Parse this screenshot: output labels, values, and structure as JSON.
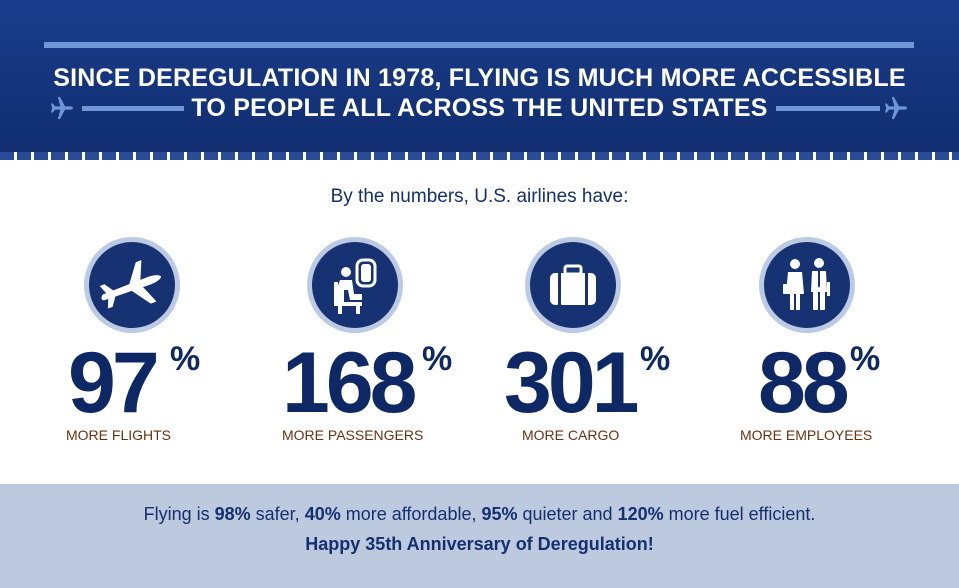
{
  "header": {
    "title_line1": "SINCE DEREGULATION IN 1978, FLYING IS MUCH MORE ACCESSIBLE",
    "title_line2": "TO PEOPLE ALL ACROSS THE UNITED STATES",
    "left_icon": "airplane-icon",
    "right_icon": "airplane-icon"
  },
  "subtitle": "By the numbers, U.S. airlines have:",
  "stats": [
    {
      "value": "97",
      "unit": "%",
      "label": "MORE FLIGHTS",
      "icon": "airplane-icon"
    },
    {
      "value": "168",
      "unit": "%",
      "label": "MORE PASSENGERS",
      "icon": "seated-passenger-icon"
    },
    {
      "value": "301",
      "unit": "%",
      "label": "MORE CARGO",
      "icon": "suitcase-icon"
    },
    {
      "value": "88",
      "unit": "%",
      "label": "MORE EMPLOYEES",
      "icon": "flight-crew-icon"
    }
  ],
  "footer": {
    "p1": "Flying is ",
    "b1": "98%",
    "p2": " safer, ",
    "b2": "40%",
    "p3": " more affordable, ",
    "b3": "95%",
    "p4": " quieter and ",
    "b4": "120%",
    "p5": " more fuel efficient.",
    "line2": "Happy 35th Anniversary of Deregulation!"
  },
  "colors": {
    "banner_blue": "#14337a",
    "accent_light_blue": "#6f97d8",
    "number_navy": "#0e2865",
    "label_brown": "#6b3212",
    "footer_band": "#bdc9de"
  }
}
